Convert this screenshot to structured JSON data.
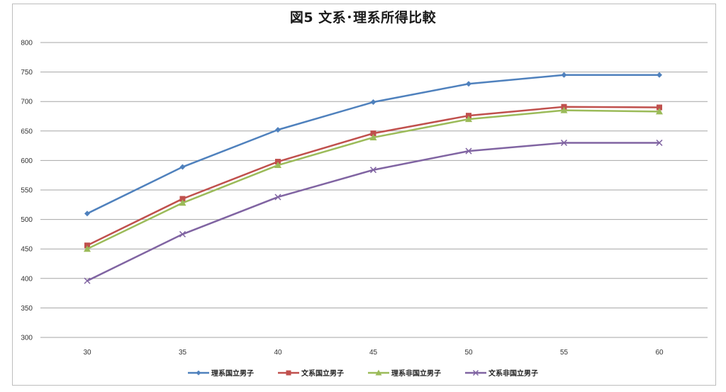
{
  "chart_data": {
    "type": "line",
    "title": "図5  文系･理系所得比較",
    "xlabel": "",
    "ylabel": "",
    "x": [
      30,
      35,
      40,
      45,
      50,
      55,
      60
    ],
    "ylim": [
      300,
      800
    ],
    "yticks": [
      300,
      350,
      400,
      450,
      500,
      550,
      600,
      650,
      700,
      750,
      800
    ],
    "grid": true,
    "legend_position": "bottom",
    "series": [
      {
        "name": "理系国立男子",
        "color": "#4f81bd",
        "marker": "diamond",
        "values": [
          510,
          589,
          652,
          699,
          730,
          745,
          745
        ]
      },
      {
        "name": "文系国立男子",
        "color": "#c0504d",
        "marker": "square",
        "values": [
          456,
          535,
          598,
          646,
          676,
          691,
          690
        ]
      },
      {
        "name": "理系非国立男子",
        "color": "#9bbb59",
        "marker": "triangle",
        "values": [
          450,
          528,
          592,
          639,
          670,
          685,
          683
        ]
      },
      {
        "name": "文系非国立男子",
        "color": "#8064a2",
        "marker": "x",
        "values": [
          396,
          475,
          538,
          584,
          616,
          630,
          630
        ]
      }
    ]
  }
}
